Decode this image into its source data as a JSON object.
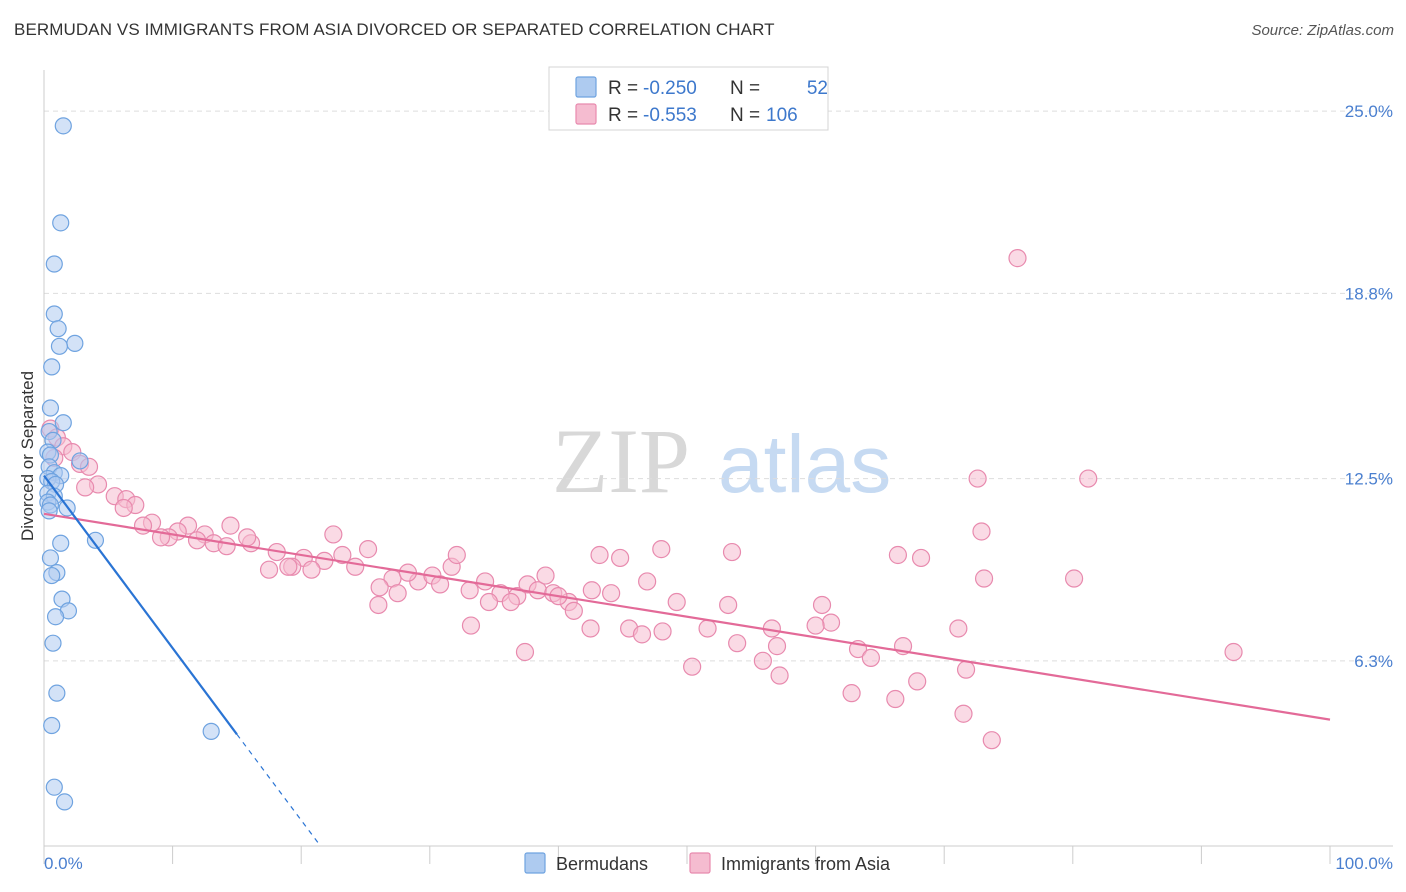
{
  "header": {
    "title": "BERMUDAN VS IMMIGRANTS FROM ASIA DIVORCED OR SEPARATED CORRELATION CHART",
    "source": "Source: ZipAtlas.com"
  },
  "watermark": {
    "zip": "ZIP",
    "atlas": "atlas"
  },
  "colors": {
    "blue": "#6fa3e0",
    "blue_fill": "#aecbf0",
    "blue_line": "#2a74d4",
    "pink": "#e88aae",
    "pink_fill": "#f5bcd0",
    "pink_line": "#e36a98",
    "grid": "#dddddd",
    "tick_text": "#4a7fcf"
  },
  "legend": {
    "r_label": "R =",
    "n_label": "N =",
    "rows": [
      {
        "r": "-0.250",
        "n": "52"
      },
      {
        "r": "-0.553",
        "n": "106"
      }
    ]
  },
  "chart_data": {
    "type": "scatter",
    "title": "BERMUDAN VS IMMIGRANTS FROM ASIA DIVORCED OR SEPARATED CORRELATION CHART",
    "xlabel": "",
    "ylabel": "Divorced or Separated",
    "xlim": [
      0,
      100
    ],
    "ylim": [
      0,
      26.4
    ],
    "x_tick_labels": [
      "0.0%",
      "100.0%"
    ],
    "y_ticks": [
      6.3,
      12.5,
      18.8,
      25.0
    ],
    "y_tick_labels": [
      "6.3%",
      "12.5%",
      "18.8%",
      "25.0%"
    ],
    "grid": true,
    "series": [
      {
        "name": "Bermudans",
        "r": -0.25,
        "n": 52,
        "points": [
          [
            1.5,
            24.5
          ],
          [
            1.3,
            21.2
          ],
          [
            0.8,
            19.8
          ],
          [
            0.8,
            18.1
          ],
          [
            1.1,
            17.6
          ],
          [
            2.4,
            17.1
          ],
          [
            1.2,
            17.0
          ],
          [
            0.6,
            16.3
          ],
          [
            0.5,
            14.9
          ],
          [
            1.5,
            14.4
          ],
          [
            0.4,
            14.1
          ],
          [
            0.7,
            13.8
          ],
          [
            0.3,
            13.4
          ],
          [
            0.5,
            13.3
          ],
          [
            2.8,
            13.1
          ],
          [
            0.4,
            12.9
          ],
          [
            0.8,
            12.7
          ],
          [
            1.3,
            12.6
          ],
          [
            0.3,
            12.5
          ],
          [
            0.6,
            12.4
          ],
          [
            0.9,
            12.3
          ],
          [
            0.3,
            12.0
          ],
          [
            0.8,
            11.9
          ],
          [
            0.3,
            11.7
          ],
          [
            0.5,
            11.6
          ],
          [
            1.8,
            11.5
          ],
          [
            0.4,
            11.4
          ],
          [
            4.0,
            10.4
          ],
          [
            1.3,
            10.3
          ],
          [
            0.5,
            9.8
          ],
          [
            1.0,
            9.3
          ],
          [
            0.6,
            9.2
          ],
          [
            1.4,
            8.4
          ],
          [
            1.9,
            8.0
          ],
          [
            0.9,
            7.8
          ],
          [
            0.7,
            6.9
          ],
          [
            1.0,
            5.2
          ],
          [
            0.6,
            4.1
          ],
          [
            13.0,
            3.9
          ],
          [
            0.8,
            2.0
          ],
          [
            1.6,
            1.5
          ]
        ],
        "trend": {
          "x": [
            0,
            15
          ],
          "y": [
            12.6,
            3.8
          ]
        },
        "trend_dashed": {
          "x": [
            15,
            21.5
          ],
          "y": [
            3.8,
            0
          ]
        }
      },
      {
        "name": "Immigrants from Asia",
        "r": -0.553,
        "n": 106,
        "points": [
          [
            0.5,
            14.2
          ],
          [
            1.0,
            13.9
          ],
          [
            1.5,
            13.6
          ],
          [
            2.2,
            13.4
          ],
          [
            0.8,
            13.2
          ],
          [
            2.8,
            13.0
          ],
          [
            3.5,
            12.9
          ],
          [
            4.2,
            12.3
          ],
          [
            3.2,
            12.2
          ],
          [
            5.5,
            11.9
          ],
          [
            6.4,
            11.8
          ],
          [
            7.1,
            11.6
          ],
          [
            6.2,
            11.5
          ],
          [
            8.4,
            11.0
          ],
          [
            7.7,
            10.9
          ],
          [
            11.2,
            10.9
          ],
          [
            14.5,
            10.9
          ],
          [
            10.4,
            10.7
          ],
          [
            12.5,
            10.6
          ],
          [
            9.7,
            10.5
          ],
          [
            11.9,
            10.4
          ],
          [
            13.2,
            10.3
          ],
          [
            14.2,
            10.2
          ],
          [
            16.1,
            10.3
          ],
          [
            9.1,
            10.5
          ],
          [
            18.1,
            10.0
          ],
          [
            22.5,
            10.6
          ],
          [
            25.2,
            10.1
          ],
          [
            20.2,
            9.8
          ],
          [
            21.8,
            9.7
          ],
          [
            23.2,
            9.9
          ],
          [
            19.3,
            9.5
          ],
          [
            17.5,
            9.4
          ],
          [
            20.8,
            9.4
          ],
          [
            24.2,
            9.5
          ],
          [
            27.1,
            9.1
          ],
          [
            26.1,
            8.8
          ],
          [
            29.1,
            9.0
          ],
          [
            28.3,
            9.3
          ],
          [
            30.2,
            9.2
          ],
          [
            31.7,
            9.5
          ],
          [
            32.1,
            9.9
          ],
          [
            30.8,
            8.9
          ],
          [
            34.3,
            9.0
          ],
          [
            33.1,
            8.7
          ],
          [
            35.5,
            8.6
          ],
          [
            36.8,
            8.5
          ],
          [
            34.6,
            8.3
          ],
          [
            37.6,
            8.9
          ],
          [
            38.4,
            8.7
          ],
          [
            36.3,
            8.3
          ],
          [
            39.6,
            8.6
          ],
          [
            40.8,
            8.3
          ],
          [
            39.0,
            9.2
          ],
          [
            42.6,
            8.7
          ],
          [
            41.2,
            8.0
          ],
          [
            43.2,
            9.9
          ],
          [
            44.1,
            8.6
          ],
          [
            48.0,
            10.1
          ],
          [
            44.8,
            9.8
          ],
          [
            46.9,
            9.0
          ],
          [
            49.2,
            8.3
          ],
          [
            42.5,
            7.4
          ],
          [
            45.5,
            7.4
          ],
          [
            46.5,
            7.2
          ],
          [
            48.1,
            7.3
          ],
          [
            51.6,
            7.4
          ],
          [
            53.9,
            6.9
          ],
          [
            56.6,
            7.4
          ],
          [
            60.5,
            8.2
          ],
          [
            61.2,
            7.6
          ],
          [
            63.3,
            6.7
          ],
          [
            66.4,
            9.9
          ],
          [
            71.1,
            7.4
          ],
          [
            71.7,
            6.0
          ],
          [
            73.1,
            9.1
          ],
          [
            72.6,
            12.5
          ],
          [
            81.2,
            12.5
          ],
          [
            80.1,
            9.1
          ],
          [
            75.7,
            20.0
          ],
          [
            72.9,
            10.7
          ],
          [
            68.2,
            9.8
          ],
          [
            50.4,
            6.1
          ],
          [
            57.2,
            5.8
          ],
          [
            64.3,
            6.4
          ],
          [
            66.2,
            5.0
          ],
          [
            67.9,
            5.6
          ],
          [
            62.8,
            5.2
          ],
          [
            71.5,
            4.5
          ],
          [
            73.7,
            3.6
          ],
          [
            66.8,
            6.8
          ],
          [
            55.9,
            6.3
          ],
          [
            37.4,
            6.6
          ],
          [
            33.2,
            7.5
          ],
          [
            53.2,
            8.2
          ],
          [
            92.5,
            6.6
          ],
          [
            53.5,
            10.0
          ],
          [
            27.5,
            8.6
          ],
          [
            26.0,
            8.2
          ],
          [
            19.0,
            9.5
          ],
          [
            15.8,
            10.5
          ],
          [
            40.0,
            8.5
          ],
          [
            60.0,
            7.5
          ],
          [
            57.0,
            6.8
          ]
        ],
        "trend": {
          "x": [
            0,
            100
          ],
          "y": [
            11.3,
            4.3
          ]
        }
      }
    ]
  }
}
